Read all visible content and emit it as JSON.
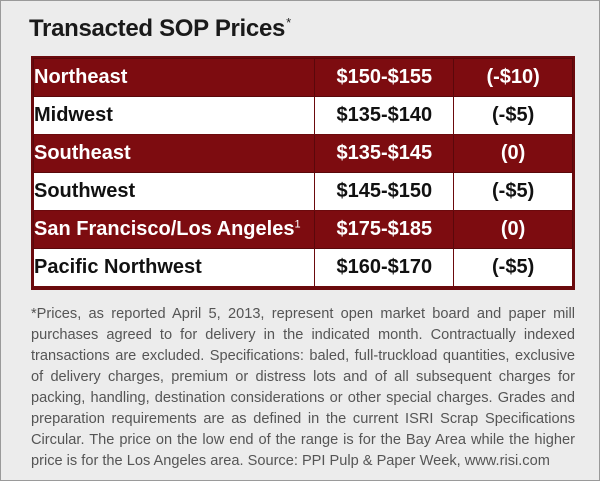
{
  "title": {
    "text": "Transacted SOP Prices",
    "marker": "*"
  },
  "rows": [
    {
      "region": "Northeast",
      "superscript": "",
      "price": "$150-$155",
      "change": "(-$10)",
      "style": "dark"
    },
    {
      "region": "Midwest",
      "superscript": "",
      "price": "$135-$140",
      "change": "(-$5)",
      "style": "light"
    },
    {
      "region": "Southeast",
      "superscript": "",
      "price": "$135-$145",
      "change": "(0)",
      "style": "dark"
    },
    {
      "region": "Southwest",
      "superscript": "",
      "price": "$145-$150",
      "change": "(-$5)",
      "style": "light"
    },
    {
      "region": "San Francisco/Los Angeles",
      "superscript": "1",
      "price": "$175-$185",
      "change": "(0)",
      "style": "dark"
    },
    {
      "region": "Pacific Northwest",
      "superscript": "",
      "price": "$160-$170",
      "change": "(-$5)",
      "style": "light"
    }
  ],
  "footnote": "*Prices, as reported April 5, 2013, represent open market board and paper mill purchases agreed to for delivery in the indicated month. Contractually indexed transactions are excluded. Specifications: baled, full-truckload quantities, exclusive of delivery charges, premium or distress lots and of all subsequent charges for packing, handling, destination considerations or other special charges. Grades and preparation requirements are as defined in the current ISRI Scrap Specifications Circular.  The price on the low end of the range is for the Bay Area while the higher price is for the Los Angeles area.  Source: PPI Pulp & Paper Week, www.risi.com",
  "colors": {
    "dark_row": "#7d0c10",
    "light_row": "#ffffff",
    "background": "#ececec"
  }
}
